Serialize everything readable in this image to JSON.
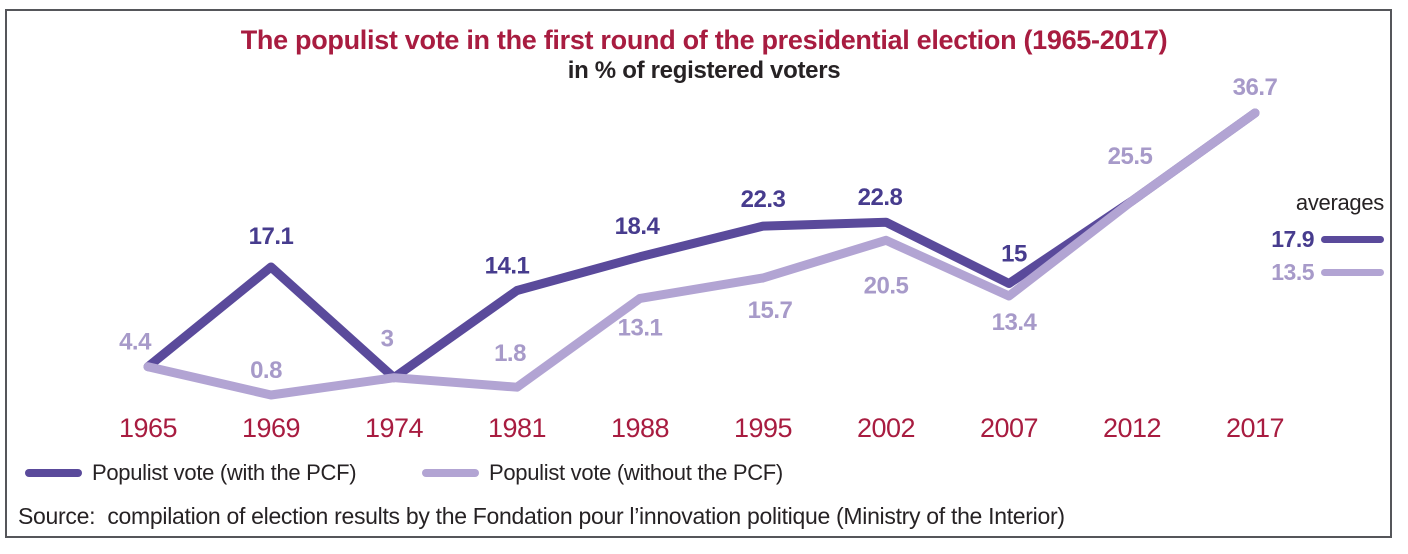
{
  "title": {
    "line1": "The populist vote in the first round of the presidential election (1965-2017)",
    "line2": "in % of registered voters"
  },
  "chart_data": {
    "type": "line",
    "x": [
      "1965",
      "1969",
      "1974",
      "1981",
      "1988",
      "1995",
      "2002",
      "2007",
      "2012",
      "2017"
    ],
    "series": [
      {
        "name": "Populist vote (with the PCF)",
        "color": "#5a4a9b",
        "label_color": "#473c8e",
        "values": [
          4.4,
          17.1,
          3,
          14.1,
          18.4,
          22.3,
          22.8,
          15,
          25.5,
          36.7
        ],
        "average": 17.9
      },
      {
        "name": "Populist vote (without the PCF)",
        "color": "#b2a4d3",
        "label_color": "#a79ac9",
        "values": [
          4.4,
          0.8,
          3,
          1.8,
          13.1,
          15.7,
          20.5,
          13.4,
          25.5,
          36.7
        ],
        "average": 13.5
      }
    ],
    "title": "The populist vote in the first round of the presidential election (1965-2017)",
    "subtitle": "in % of registered voters",
    "ylim": [
      0,
      40
    ],
    "grid": false,
    "axes_visible": false,
    "value_labels": true,
    "x_label_color": "#a81c40",
    "legend_position": "bottom-left"
  },
  "averages": {
    "label": "averages",
    "items": [
      {
        "value": "17.9"
      },
      {
        "value": "13.5"
      }
    ]
  },
  "legend": {
    "items": [
      {
        "label": "Populist vote (with the PCF)"
      },
      {
        "label": "Populist vote (without the PCF)"
      }
    ]
  },
  "source": "Source:  compilation of election results by the Fondation pour l’innovation politique (Ministry of the Interior)",
  "colors": {
    "with_pcf_line": "#5a4a9b",
    "with_pcf_label": "#473c8e",
    "without_pcf_line": "#b2a4d3",
    "without_pcf_label": "#a79ac9",
    "year_labels": "#a81c40",
    "title": "#a81c40",
    "text": "#262224",
    "frame_border": "#55565a"
  }
}
